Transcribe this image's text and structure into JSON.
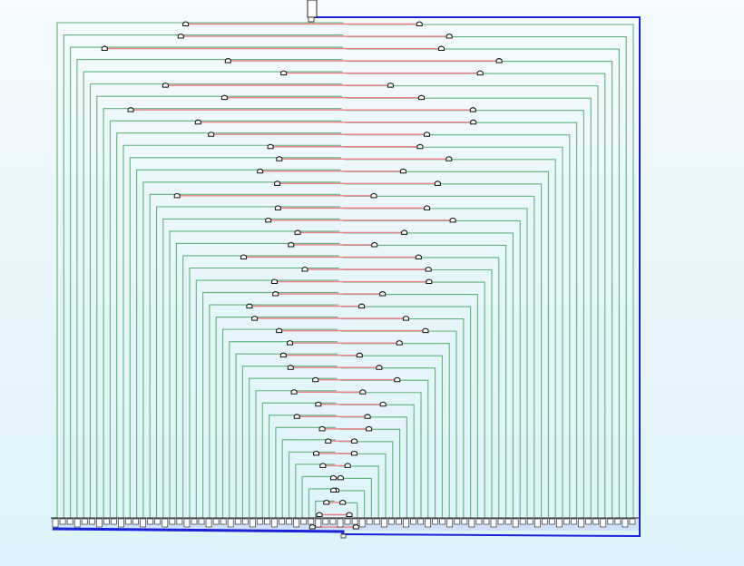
{
  "diagram": {
    "kind": "routing-tree",
    "colors": {
      "background_top": "#f4fafd",
      "background_bottom": "#def3fb",
      "branch_wire": "#5fb37a",
      "level_link": "#ee7f84",
      "bus": "#1a22d8",
      "bus_fill": "#c3d4fb",
      "node": "#111111",
      "root_port": "#ffffff"
    },
    "node_count": 84,
    "sink_count": 80,
    "has_root_port": true,
    "has_output_bus": true
  }
}
